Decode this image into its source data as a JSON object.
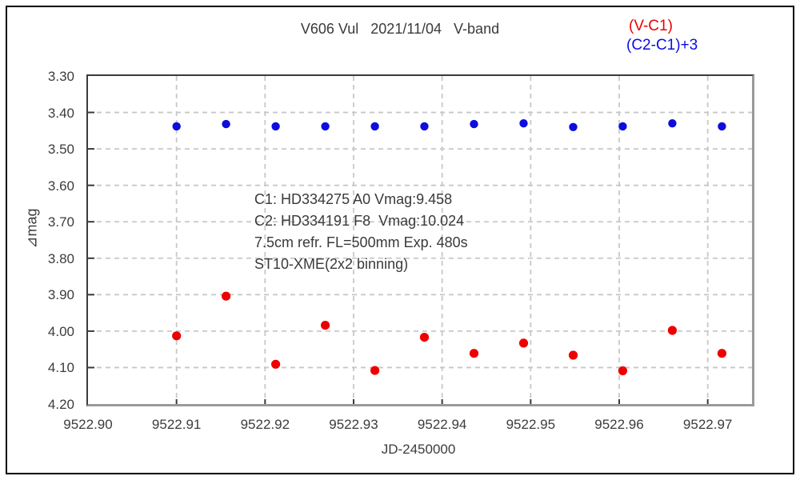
{
  "title": "V606 Vul   2021/11/04   V-band",
  "legend": {
    "red_label": "(V-C1)",
    "blue_label": "(C2-C1)+3"
  },
  "annotation": {
    "lines": [
      "C1: HD334275 A0 Vmag:9.458",
      "C2: HD334191 F8  Vmag:10.024",
      "7.5cm refr. FL=500mm Exp. 480s",
      "ST10-XME(2x2 binning)"
    ]
  },
  "colors": {
    "red": "#ee0000",
    "blue": "#0d0ddd",
    "grid": "#c8c8c8",
    "axis_tick": "#3b3b3b",
    "text": "#3c3c3c"
  },
  "chart_data": {
    "type": "scatter",
    "title": "V606 Vul 2021/11/04 V-band",
    "xlabel": "JD-2450000",
    "ylabel": "⊿mag",
    "xlim": [
      9522.9,
      9522.975
    ],
    "ylim": [
      3.3,
      4.2
    ],
    "y_axis_direction": "increasing-downward",
    "grid": true,
    "legend_position": "top-right",
    "xticks": [
      9522.9,
      9522.91,
      9522.92,
      9522.93,
      9522.94,
      9522.95,
      9522.96,
      9522.97
    ],
    "yticks": [
      3.3,
      3.4,
      3.5,
      3.6,
      3.7,
      3.8,
      3.9,
      4.0,
      4.1,
      4.2
    ],
    "x": [
      9522.91,
      9522.9156,
      9522.9212,
      9522.9268,
      9522.9324,
      9522.938,
      9522.9436,
      9522.9492,
      9522.9548,
      9522.9604,
      9522.966,
      9522.9716
    ],
    "series": [
      {
        "name": "V-C1",
        "color": "#ee0000",
        "marker_radius": 5.6,
        "values": [
          4.013,
          3.904,
          4.091,
          3.984,
          4.108,
          4.017,
          4.061,
          4.033,
          4.066,
          4.109,
          3.998,
          4.061
        ]
      },
      {
        "name": "(C2-C1)+3",
        "color": "#0d0ddd",
        "marker_radius": 5.2,
        "values": [
          3.438,
          3.432,
          3.438,
          3.438,
          3.438,
          3.438,
          3.432,
          3.43,
          3.44,
          3.438,
          3.43,
          3.438
        ]
      }
    ]
  }
}
